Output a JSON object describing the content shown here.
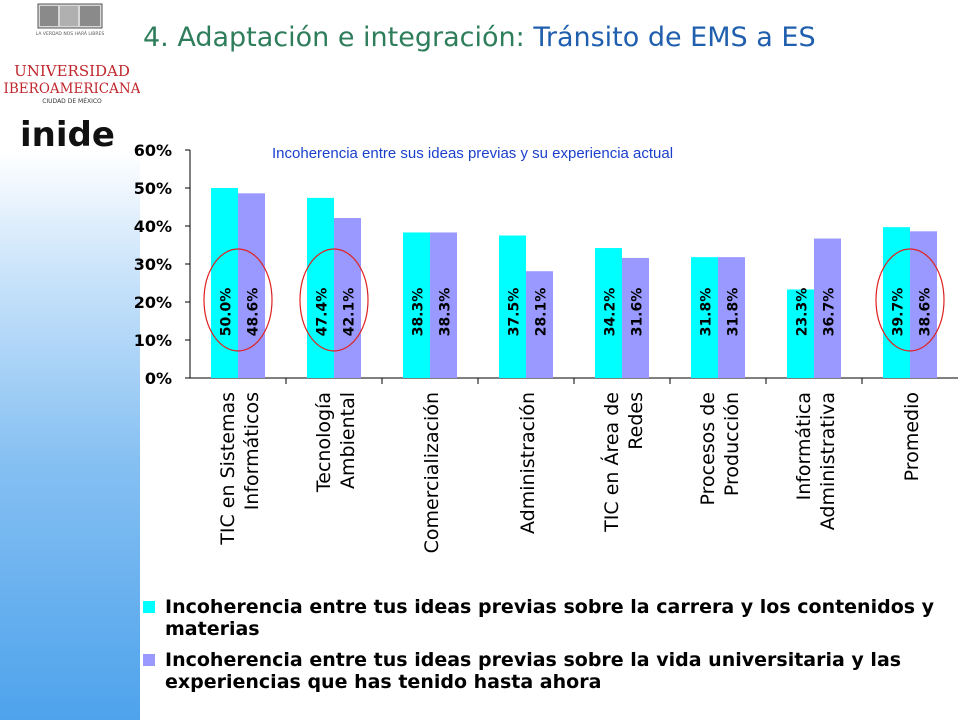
{
  "slide": {
    "title_part1": "4. Adaptación e integración:",
    "title_part2": "Tránsito de EMS a ES"
  },
  "logo": {
    "seal_text": "LA VERDAD NOS HARÁ LIBRES",
    "university_line1": "UNIVERSIDAD",
    "university_line2": "IBEROAMERICANA",
    "university_line3": "CIUDAD DE MÉXICO",
    "inide": "inide"
  },
  "colors": {
    "series1": "#00ffff",
    "series2": "#9999ff",
    "highlight_circle": "#e02020",
    "chart_title": "#1a3fcc",
    "title_green": "#2e7d5b",
    "title_blue": "#1f5fae",
    "logo_red": "#c0272d"
  },
  "chart_data": {
    "type": "bar",
    "title": "Incoherencia entre sus ideas previas y su experiencia actual",
    "categories": [
      [
        "TIC en Sistemas",
        "Informáticos"
      ],
      [
        "Tecnología",
        "Ambiental"
      ],
      [
        "Comercialización"
      ],
      [
        "Administración"
      ],
      [
        "TIC en Área de",
        "Redes"
      ],
      [
        "Procesos de",
        "Producción"
      ],
      [
        "Informática",
        "Administrativa"
      ],
      [
        "Promedio"
      ]
    ],
    "series": [
      {
        "name": "Incoherencia entre tus ideas previas sobre la carrera y los contenidos y materias",
        "values": [
          50.0,
          47.4,
          38.3,
          37.5,
          34.2,
          31.8,
          23.3,
          39.7
        ],
        "labels": [
          "50.0%",
          "47.4%",
          "38.3%",
          "37.5%",
          "34.2%",
          "31.8%",
          "23.3%",
          "39.7%"
        ]
      },
      {
        "name": "Incoherencia entre tus ideas previas sobre la vida universitaria y las experiencias que has tenido hasta ahora",
        "values": [
          48.6,
          42.1,
          38.3,
          28.1,
          31.6,
          31.8,
          36.7,
          38.6
        ],
        "labels": [
          "48.6%",
          "42.1%",
          "38.3%",
          "28.1%",
          "31.6%",
          "31.8%",
          "36.7%",
          "38.6%"
        ]
      }
    ],
    "y_ticks": [
      "0%",
      "10%",
      "20%",
      "30%",
      "40%",
      "50%",
      "60%"
    ],
    "ylim": [
      0,
      60
    ],
    "highlighted_categories": [
      0,
      1,
      7
    ],
    "legend_position": "bottom",
    "grid": false
  }
}
